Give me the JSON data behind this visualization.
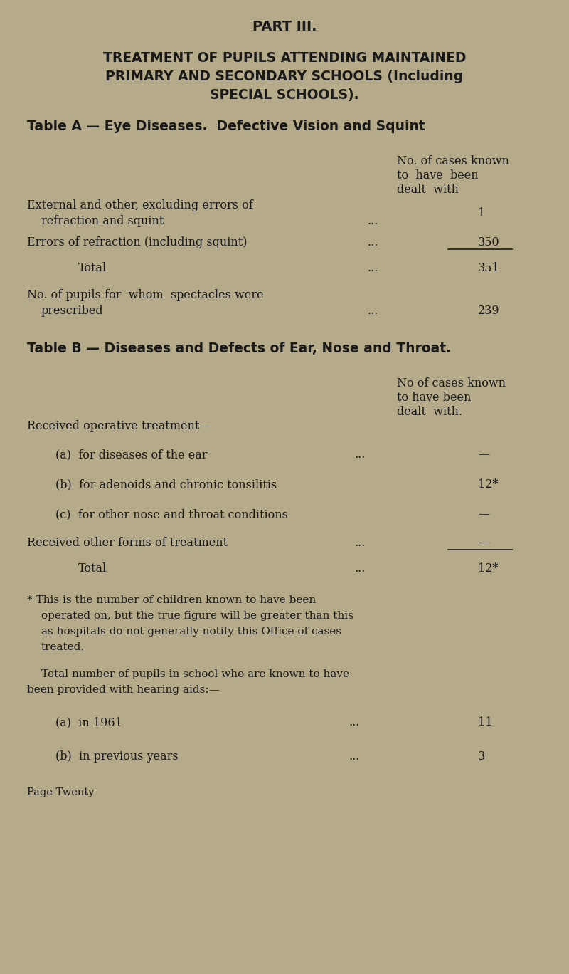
{
  "bg_color": "#b5ab8a",
  "text_color": "#1a1a1a",
  "part_title": "PART III.",
  "main_title_line1": "TREATMENT OF PUPILS ATTENDING MAINTAINED",
  "main_title_line2": "PRIMARY AND SECONDARY SCHOOLS (Including",
  "main_title_line3": "SPECIAL SCHOOLS).",
  "table_a_heading": "Table A — Eye Diseases.  Defective Vision and Squint",
  "col_header_line1": "No. of cases known",
  "col_header_line2": "to  have  been",
  "col_header_line3": "dealt  with",
  "row1_label_line1": "External and other, excluding errors of",
  "row1_label_line2": "refraction and squint",
  "row1_dots": "...",
  "row1_value": "1",
  "row2_label": "Errors of refraction (including squint)",
  "row2_dots": "...",
  "row2_value": "350",
  "total_a_label": "Total",
  "total_a_dots": "...",
  "total_a_value": "351",
  "spectacles_line1": "No. of pupils for  whom  spectacles were",
  "spectacles_line2": "prescribed",
  "spectacles_dots": "...",
  "spectacles_value": "239",
  "table_b_heading": "Table B — Diseases and Defects of Ear, Nose and Throat.",
  "col_b_header_line1": "No of cases known",
  "col_b_header_line2": "to have been",
  "col_b_header_line3": "dealt  with.",
  "received_op": "Received operative treatment—",
  "row_a_label": "(a)  for diseases of the ear",
  "row_a_dots": "...",
  "row_a_value": "—",
  "row_b_label": "(b)  for adenoids and chronic tonsilitis",
  "row_b_value": "12*",
  "row_c_label": "(c)  for other nose and throat conditions",
  "row_c_value": "—",
  "other_forms_label": "Received other forms of treatment",
  "other_forms_dots": "...",
  "other_forms_value": "—",
  "total_b_label": "Total",
  "total_b_dots": "...",
  "total_b_value": "12*",
  "footnote_line1": "* This is the number of children known to have been",
  "footnote_line2": "operated on, but the true figure will be greater than this",
  "footnote_line3": "as hospitals do not generally notify this Office of cases",
  "footnote_line4": "treated.",
  "hearing_para_line1": "Total number of pupils in school who are known to have",
  "hearing_para_line2": "been provided with hearing aids:—",
  "hearing_a_label": "(a)  in 1961",
  "hearing_a_dots": "...",
  "hearing_a_value": "11",
  "hearing_b_label": "(b)  in previous years",
  "hearing_b_dots": "...",
  "hearing_b_value": "3",
  "page_label": "Page Twenty"
}
